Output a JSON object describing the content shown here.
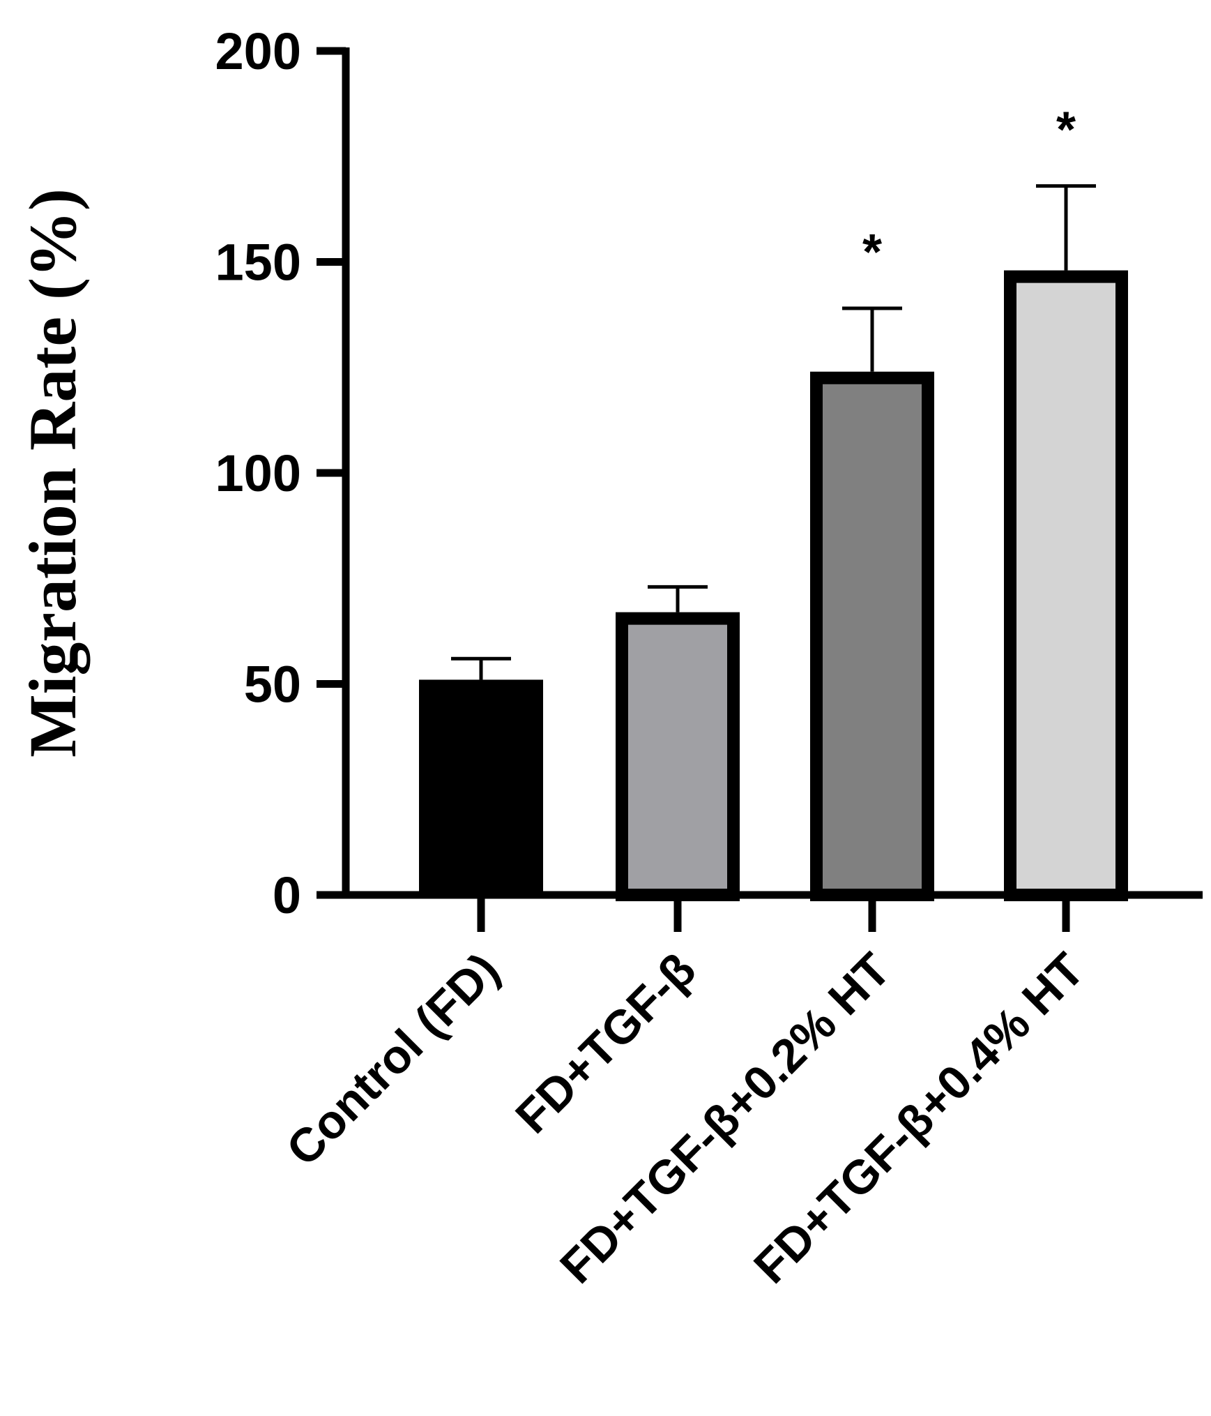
{
  "chart_data": {
    "type": "bar",
    "title": "",
    "xlabel": "",
    "ylabel": "Migration Rate (%)",
    "ylim": [
      0,
      200
    ],
    "yticks": [
      0,
      50,
      100,
      150,
      200
    ],
    "ytick_labels": [
      "0",
      "50",
      "100",
      "150",
      "200"
    ],
    "categories": [
      "Control (FD)",
      "FD+TGF-β",
      "FD+TGF-β+0.2% HT",
      "FD+TGF-β+0.4% HT"
    ],
    "values": [
      51,
      67,
      124,
      148
    ],
    "error_upper": [
      5,
      6,
      15,
      20
    ],
    "significance": [
      "",
      "",
      "*",
      "*"
    ],
    "colors": {
      "bars": [
        "#000000",
        "#a0a0a4",
        "#808080",
        "#d4d4d4"
      ],
      "bar_outline": "#000000",
      "axis": "#000000"
    },
    "grid": false,
    "legend": "none"
  }
}
